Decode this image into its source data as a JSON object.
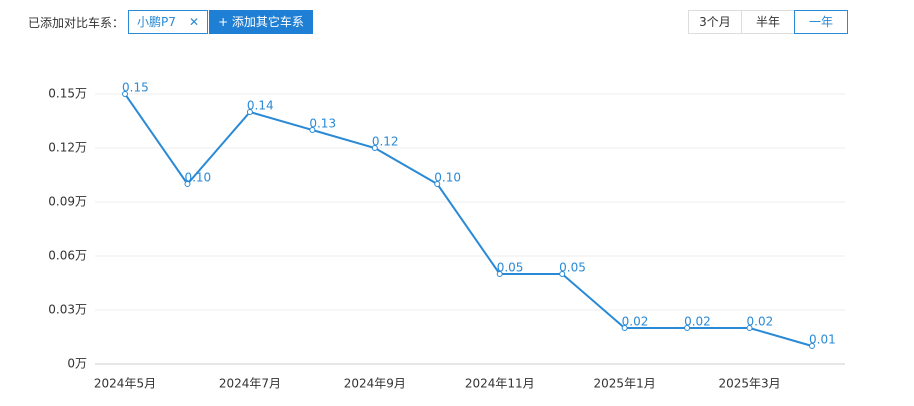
{
  "ui": {
    "compare_label": "已添加对比车系：",
    "tag": "小鹏P7",
    "tag_close": "✕",
    "add_button": "+ 添加其它车系",
    "tabs": [
      "3个月",
      "半年",
      "一年"
    ],
    "active_tab": 2
  },
  "chart_data": {
    "type": "line",
    "categories": [
      "2024年5月",
      null,
      "2024年7月",
      null,
      "2024年9月",
      null,
      "2024年11月",
      null,
      "2025年1月",
      null,
      "2025年3月",
      null
    ],
    "series": [
      {
        "name": "小鹏P7",
        "color": "#2a8ad6",
        "values": [
          0.15,
          0.1,
          0.14,
          0.13,
          0.12,
          0.1,
          0.05,
          0.05,
          0.02,
          0.02,
          0.02,
          0.01
        ],
        "value_labels": [
          "0.15",
          "0.10",
          "0.14",
          "0.13",
          "0.12",
          "0.10",
          "0.05",
          "0.05",
          "0.02",
          "0.02",
          "0.02",
          "0.01"
        ]
      }
    ],
    "ylim": [
      0,
      0.15
    ],
    "yticks": [
      {
        "value": 0,
        "label": "0万"
      },
      {
        "value": 0.03,
        "label": "0.03万"
      },
      {
        "value": 0.06,
        "label": "0.06万"
      },
      {
        "value": 0.09,
        "label": "0.09万"
      },
      {
        "value": 0.12,
        "label": "0.12万"
      },
      {
        "value": 0.15,
        "label": "0.15万"
      }
    ],
    "grid": true
  }
}
